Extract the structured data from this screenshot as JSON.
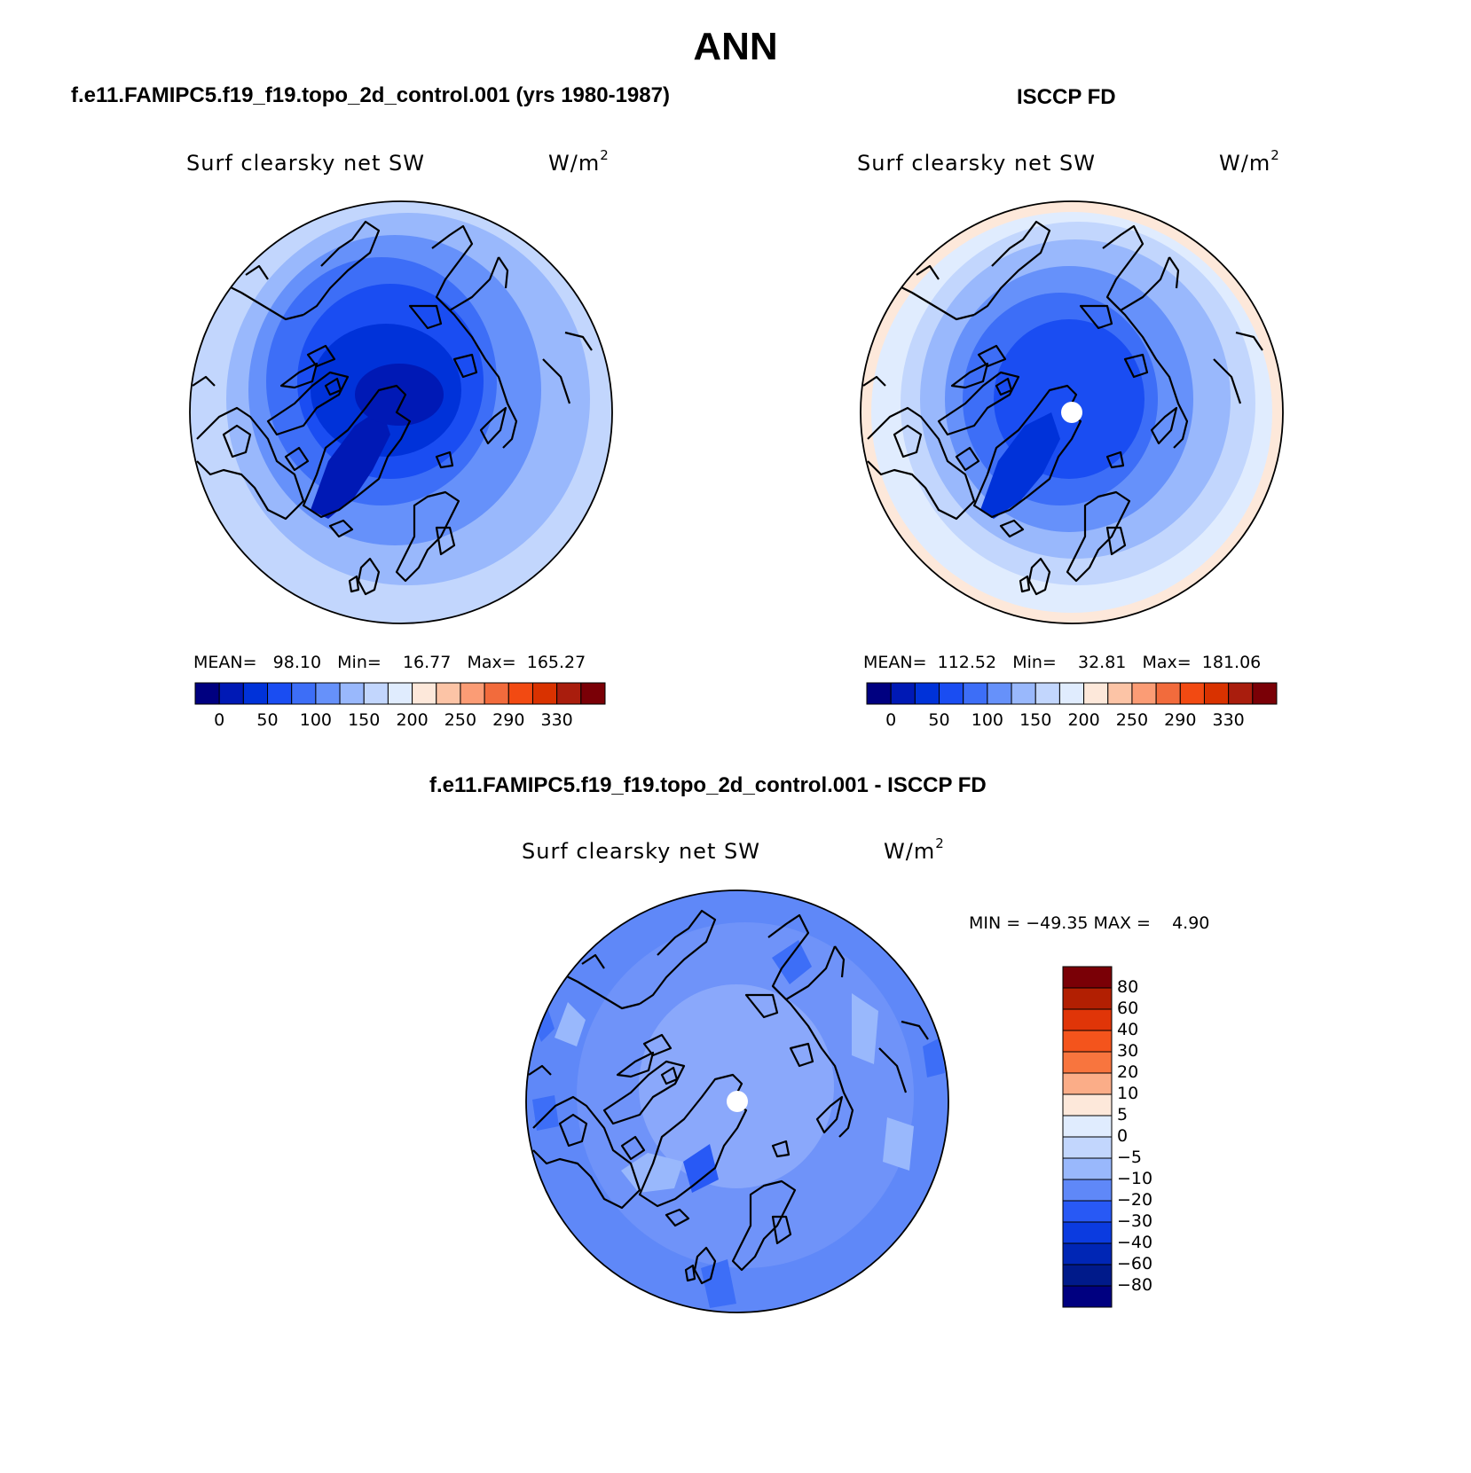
{
  "figure": {
    "title": "ANN",
    "panels": [
      {
        "case_title": "f.e11.FAMIPC5.f19_f19.topo_2d_control.001 (yrs 1980-1987)",
        "variable": "Surf clearsky net SW",
        "units": "W/m",
        "units_sup": "2",
        "stats_text": "MEAN=   98.10   Min=    16.77   Max=  165.27",
        "stats": {
          "mean": 98.1,
          "min": 16.77,
          "max": 165.27
        }
      },
      {
        "case_title": "ISCCP FD",
        "variable": "Surf clearsky net SW",
        "units": "W/m",
        "units_sup": "2",
        "stats_text": "MEAN=  112.52   Min=    32.81   Max=  181.06",
        "stats": {
          "mean": 112.52,
          "min": 32.81,
          "max": 181.06
        }
      },
      {
        "case_title": "f.e11.FAMIPC5.f19_f19.topo_2d_control.001 - ISCCP FD",
        "variable": "Surf clearsky net SW",
        "units": "W/m",
        "units_sup": "2",
        "stats_text": "MIN = −49.35 MAX =    4.90",
        "stats": {
          "min": -49.35,
          "max": 4.9
        }
      }
    ],
    "abs_colorbar": {
      "labels": [
        "0",
        "50",
        "100",
        "150",
        "200",
        "250",
        "290",
        "330"
      ],
      "levels": [
        0,
        25,
        50,
        75,
        100,
        125,
        150,
        175,
        200,
        225,
        250,
        270,
        290,
        310,
        330
      ],
      "colors": [
        "#000080",
        "#0019b5",
        "#0032d9",
        "#1a4df2",
        "#3d6ef7",
        "#6691fa",
        "#99b8fc",
        "#c2d6fd",
        "#e0ecfe",
        "#fde8da",
        "#fcc4a6",
        "#fb9c75",
        "#f26b3c",
        "#f24a12",
        "#d93200",
        "#a91d0d",
        "#7a0006"
      ]
    },
    "diff_colorbar": {
      "labels": [
        "80",
        "60",
        "40",
        "30",
        "20",
        "10",
        "5",
        "0",
        "−5",
        "−10",
        "−20",
        "−30",
        "−40",
        "−60",
        "−80"
      ],
      "colors": [
        "#7a0006",
        "#b21f02",
        "#e03508",
        "#f4541c",
        "#f8753e",
        "#fbad88",
        "#fde8da",
        "#e0ecfe",
        "#c2d6fd",
        "#99b8fc",
        "#5f88f8",
        "#2859f5",
        "#0b3be0",
        "#0026b5",
        "#001a8a",
        "#000080"
      ]
    }
  }
}
